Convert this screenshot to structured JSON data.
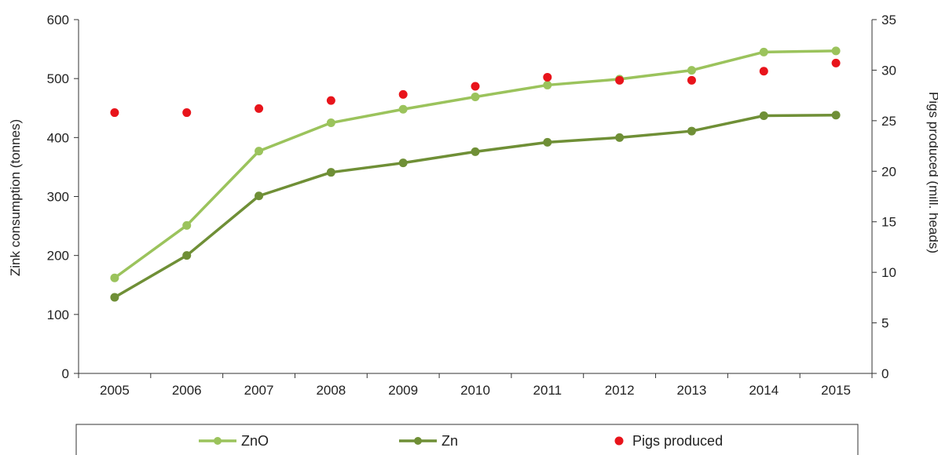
{
  "chart_data": {
    "type": "line",
    "categories": [
      "2005",
      "2006",
      "2007",
      "2008",
      "2009",
      "2010",
      "2011",
      "2012",
      "2013",
      "2014",
      "2015"
    ],
    "y_left": {
      "label": "Zink consumption (tonnes)",
      "range": [
        0,
        600
      ],
      "ticks": [
        "0",
        "100",
        "200",
        "300",
        "400",
        "500",
        "600"
      ]
    },
    "y_right": {
      "label": "Pigs produced (mill. heads)",
      "range": [
        0,
        35
      ],
      "ticks": [
        "0",
        "5",
        "10",
        "15",
        "20",
        "25",
        "30",
        "35"
      ]
    },
    "series": [
      {
        "name": "ZnO",
        "kind": "line",
        "axis": "left",
        "color": "#9bc35c",
        "values": [
          162,
          251,
          377,
          425,
          448,
          469,
          489,
          499,
          514,
          545,
          547
        ]
      },
      {
        "name": "Zn",
        "kind": "line",
        "axis": "left",
        "color": "#6f8f36",
        "values": [
          129,
          200,
          301,
          341,
          357,
          376,
          392,
          400,
          411,
          437,
          438
        ]
      },
      {
        "name": "Pigs produced",
        "kind": "scatter",
        "axis": "right",
        "color": "#e8141b",
        "values": [
          25.8,
          25.8,
          26.2,
          27.0,
          27.6,
          28.4,
          29.3,
          29.0,
          29.0,
          29.9,
          30.7
        ]
      }
    ],
    "grid": false,
    "legend_position": "bottom"
  }
}
